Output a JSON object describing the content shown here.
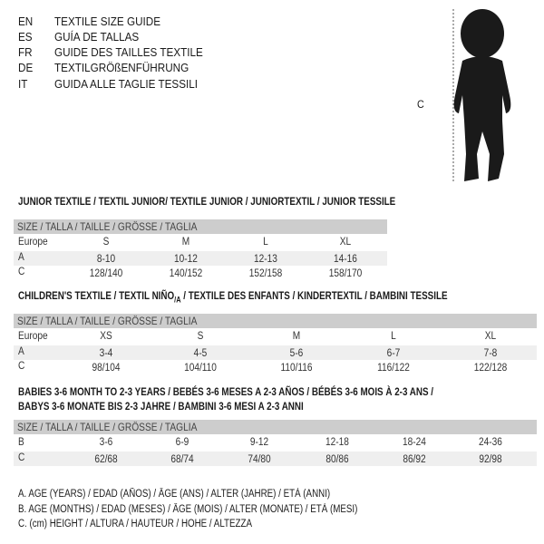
{
  "title_lines": [
    {
      "lang": "EN",
      "text": "TEXTILE SIZE GUIDE"
    },
    {
      "lang": "ES",
      "text": "GUÍA DE TALLAS"
    },
    {
      "lang": "FR",
      "text": "GUIDE DES TAILLES TEXTILE"
    },
    {
      "lang": "DE",
      "text": "TEXTILGRÖßENFÜHRUNG"
    },
    {
      "lang": "IT",
      "text": "GUIDA ALLE TAGLIE TESSILI"
    }
  ],
  "figure": {
    "label": "C",
    "icon": "child-silhouette"
  },
  "size_header": "SIZE / TALLA / TAILLE / GRÖSSE / TAGLIA",
  "junior": {
    "title": "JUNIOR TEXTILE / TEXTIL JUNIOR/ TEXTILE JUNIOR / JUNIORTEXTIL / JUNIOR TESSILE",
    "rows": [
      {
        "label": "Europe",
        "values": [
          "S",
          "M",
          "L",
          "XL"
        ]
      },
      {
        "label": "A",
        "values": [
          "8-10",
          "10-12",
          "12-13",
          "14-16"
        ]
      },
      {
        "label": "C",
        "values": [
          "128/140",
          "140/152",
          "152/158",
          "158/170"
        ]
      }
    ]
  },
  "children": {
    "title": "CHILDREN'S TEXTILE / TEXTIL NIÑO/A / TEXTILE DES ENFANTS / KINDERTEXTIL / BAMBINI TESSILE",
    "rows": [
      {
        "label": "Europe",
        "values": [
          "XS",
          "S",
          "M",
          "L",
          "XL"
        ]
      },
      {
        "label": "A",
        "values": [
          "3-4",
          "4-5",
          "5-6",
          "6-7",
          "7-8"
        ]
      },
      {
        "label": "C",
        "values": [
          "98/104",
          "104/110",
          "110/116",
          "116/122",
          "122/128"
        ]
      }
    ]
  },
  "babies": {
    "title_line1": "BABIES 3-6 MONTH TO 2-3 YEARS / BEBÉS 3-6 MESES A 2-3 AÑOS / BÉBÉS 3-6 MOIS À 2-3 ANS /",
    "title_line2": "BABYS 3-6 MONATE BIS 2-3 JAHRE / BAMBINI 3-6 MESI A 2-3 ANNI",
    "rows": [
      {
        "label": "B",
        "values": [
          "3-6",
          "6-9",
          "9-12",
          "12-18",
          "18-24",
          "24-36"
        ]
      },
      {
        "label": "C",
        "values": [
          "62/68",
          "68/74",
          "74/80",
          "80/86",
          "86/92",
          "92/98"
        ]
      }
    ]
  },
  "legend": [
    "A. AGE (YEARS) / EDAD (AÑOS) / ÂGE (ANS) / ALTER (JAHRE) / ETÀ (ANNI)",
    "B. AGE (MONTHS) / EDAD (MESES) / ÂGE (MOIS) / ALTER (MONATE) / ETÀ (MESI)",
    "C. (cm) HEIGHT / ALTURA / HAUTEUR / HÖHE / ALTEZZA"
  ]
}
